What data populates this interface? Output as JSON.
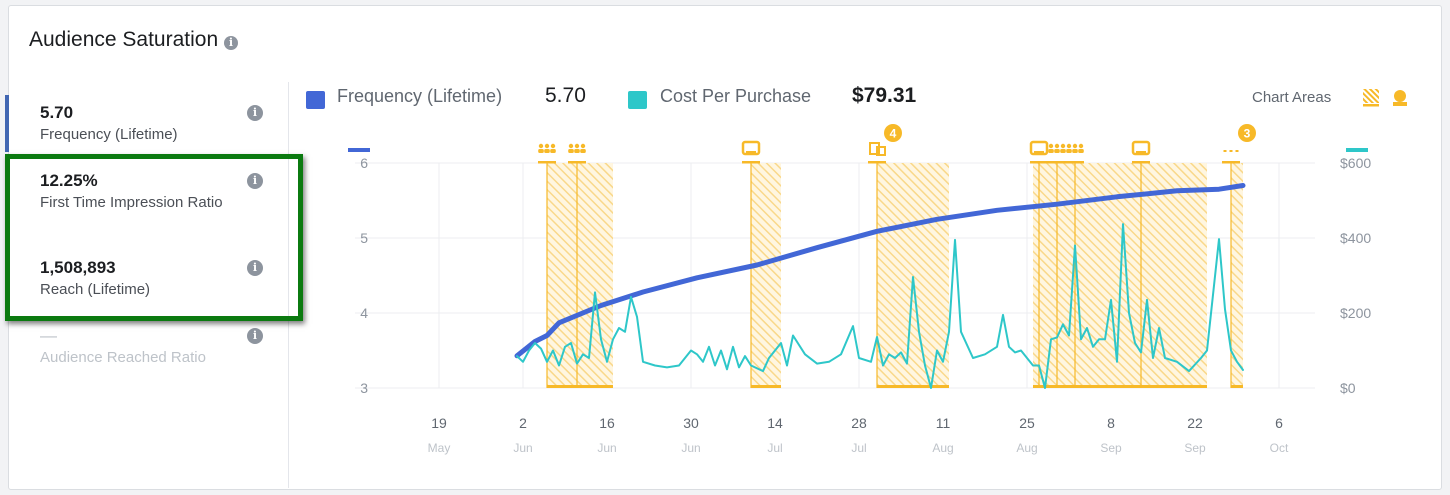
{
  "header": {
    "title": "Audience Saturation"
  },
  "metrics": [
    {
      "value": "5.70",
      "label": "Frequency (Lifetime)",
      "selected": true
    },
    {
      "value": "12.25%",
      "label": "First Time Impression Ratio",
      "highlighted": true
    },
    {
      "value": "1,508,893",
      "label": "Reach (Lifetime)",
      "highlighted": true
    },
    {
      "value": "—",
      "label": "Audience Reached Ratio",
      "disabled": true
    }
  ],
  "legend": {
    "series1": {
      "label": "Frequency (Lifetime)",
      "value": "5.70",
      "color": "#4267d6"
    },
    "series2": {
      "label": "Cost Per Purchase",
      "value": "$79.31",
      "color": "#2ec7c9"
    },
    "chart_areas_label": "Chart Areas"
  },
  "colors": {
    "area": "#f7b928",
    "highlight_box": "#0b7a10"
  },
  "chart_data": {
    "type": "line",
    "xlim": [
      "May 5",
      "Oct 12"
    ],
    "x_ticks": [
      {
        "d": "19",
        "m": "May"
      },
      {
        "d": "2",
        "m": "Jun"
      },
      {
        "d": "16",
        "m": "Jun"
      },
      {
        "d": "30",
        "m": "Jun"
      },
      {
        "d": "14",
        "m": "Jul"
      },
      {
        "d": "28",
        "m": "Jul"
      },
      {
        "d": "11",
        "m": "Aug"
      },
      {
        "d": "25",
        "m": "Aug"
      },
      {
        "d": "8",
        "m": "Sep"
      },
      {
        "d": "22",
        "m": "Sep"
      },
      {
        "d": "6",
        "m": "Oct"
      }
    ],
    "y_left": {
      "lim": [
        3,
        6
      ],
      "ticks": [
        "3",
        "4",
        "5",
        "6"
      ]
    },
    "y_right": {
      "lim": [
        0,
        600
      ],
      "ticks": [
        "$0",
        "$200",
        "$400",
        "$600"
      ]
    },
    "grid": true,
    "series": [
      {
        "name": "Frequency (Lifetime)",
        "axis": "left",
        "points": [
          [
            "Jun 1",
            3.43
          ],
          [
            "Jun 4",
            3.62
          ],
          [
            "Jun 6",
            3.7
          ],
          [
            "Jun 8",
            3.87
          ],
          [
            "Jun 15",
            4.1
          ],
          [
            "Jun 22",
            4.28
          ],
          [
            "Jul 1",
            4.47
          ],
          [
            "Jul 11",
            4.64
          ],
          [
            "Jul 21",
            4.87
          ],
          [
            "Jul 31",
            5.09
          ],
          [
            "Aug 10",
            5.25
          ],
          [
            "Aug 20",
            5.37
          ],
          [
            "Aug 30",
            5.45
          ],
          [
            "Sep 9",
            5.55
          ],
          [
            "Sep 19",
            5.63
          ],
          [
            "Sep 26",
            5.65
          ],
          [
            "Sep 30",
            5.7
          ]
        ]
      },
      {
        "name": "Cost Per Purchase",
        "axis": "right",
        "points": [
          [
            "Jun 1",
            85
          ],
          [
            "Jun 2",
            70
          ],
          [
            "Jun 3",
            100
          ],
          [
            "Jun 4",
            120
          ],
          [
            "Jun 5",
            105
          ],
          [
            "Jun 6",
            70
          ],
          [
            "Jun 7",
            100
          ],
          [
            "Jun 8",
            60
          ],
          [
            "Jun 9",
            110
          ],
          [
            "Jun 10",
            120
          ],
          [
            "Jun 11",
            65
          ],
          [
            "Jun 12",
            90
          ],
          [
            "Jun 13",
            80
          ],
          [
            "Jun 14",
            255
          ],
          [
            "Jun 15",
            130
          ],
          [
            "Jun 16",
            70
          ],
          [
            "Jun 17",
            130
          ],
          [
            "Jun 18",
            160
          ],
          [
            "Jun 19",
            150
          ],
          [
            "Jun 20",
            243
          ],
          [
            "Jun 21",
            190
          ],
          [
            "Jun 22",
            70
          ],
          [
            "Jun 24",
            60
          ],
          [
            "Jun 26",
            55
          ],
          [
            "Jun 28",
            60
          ],
          [
            "Jun 30",
            100
          ],
          [
            "Jul 1",
            90
          ],
          [
            "Jul 2",
            70
          ],
          [
            "Jul 3",
            110
          ],
          [
            "Jul 4",
            60
          ],
          [
            "Jul 5",
            100
          ],
          [
            "Jul 6",
            50
          ],
          [
            "Jul 7",
            110
          ],
          [
            "Jul 8",
            55
          ],
          [
            "Jul 9",
            85
          ],
          [
            "Jul 10",
            60
          ],
          [
            "Jul 12",
            45
          ],
          [
            "Jul 13",
            80
          ],
          [
            "Jul 15",
            120
          ],
          [
            "Jul 16",
            60
          ],
          [
            "Jul 17",
            140
          ],
          [
            "Jul 19",
            90
          ],
          [
            "Jul 21",
            65
          ],
          [
            "Jul 23",
            70
          ],
          [
            "Jul 25",
            90
          ],
          [
            "Jul 27",
            165
          ],
          [
            "Jul 28",
            80
          ],
          [
            "Jul 30",
            70
          ],
          [
            "Jul 31",
            136
          ],
          [
            "Aug 1",
            60
          ],
          [
            "Aug 2",
            90
          ],
          [
            "Aug 3",
            80
          ],
          [
            "Aug 4",
            95
          ],
          [
            "Aug 5",
            65
          ],
          [
            "Aug 6",
            296
          ],
          [
            "Aug 7",
            150
          ],
          [
            "Aug 8",
            60
          ],
          [
            "Aug 9",
            0
          ],
          [
            "Aug 10",
            100
          ],
          [
            "Aug 11",
            70
          ],
          [
            "Aug 12",
            150
          ],
          [
            "Aug 13",
            395
          ],
          [
            "Aug 14",
            150
          ],
          [
            "Aug 16",
            80
          ],
          [
            "Aug 18",
            90
          ],
          [
            "Aug 20",
            110
          ],
          [
            "Aug 21",
            195
          ],
          [
            "Aug 22",
            110
          ],
          [
            "Aug 23",
            95
          ],
          [
            "Aug 24",
            100
          ],
          [
            "Aug 25",
            80
          ],
          [
            "Aug 26",
            60
          ],
          [
            "Aug 27",
            60
          ],
          [
            "Aug 28",
            0
          ],
          [
            "Aug 29",
            130
          ],
          [
            "Aug 30",
            135
          ],
          [
            "Aug 31",
            170
          ],
          [
            "Sep 1",
            140
          ],
          [
            "Sep 2",
            380
          ],
          [
            "Sep 3",
            130
          ],
          [
            "Sep 4",
            160
          ],
          [
            "Sep 5",
            110
          ],
          [
            "Sep 6",
            130
          ],
          [
            "Sep 7",
            130
          ],
          [
            "Sep 8",
            235
          ],
          [
            "Sep 9",
            70
          ],
          [
            "Sep 10",
            437
          ],
          [
            "Sep 11",
            200
          ],
          [
            "Sep 12",
            120
          ],
          [
            "Sep 13",
            95
          ],
          [
            "Sep 14",
            235
          ],
          [
            "Sep 15",
            80
          ],
          [
            "Sep 16",
            160
          ],
          [
            "Sep 17",
            80
          ],
          [
            "Sep 19",
            70
          ],
          [
            "Sep 21",
            45
          ],
          [
            "Sep 23",
            80
          ],
          [
            "Sep 24",
            100
          ],
          [
            "Sep 26",
            397
          ],
          [
            "Sep 27",
            210
          ],
          [
            "Sep 28",
            100
          ],
          [
            "Sep 29",
            70
          ],
          [
            "Sep 30",
            48
          ]
        ]
      }
    ],
    "chart_areas": [
      {
        "start": "Jun 6",
        "end": "Jun 17",
        "markers": [
          {
            "date": "Jun 6",
            "icon": "people-icon"
          },
          {
            "date": "Jun 11",
            "icon": "people-icon"
          }
        ]
      },
      {
        "start": "Jul 10",
        "end": "Jul 15",
        "markers": [
          {
            "date": "Jul 10",
            "icon": "monitor-icon"
          }
        ]
      },
      {
        "start": "Jul 31",
        "end": "Aug 12",
        "markers": [
          {
            "date": "Jul 31",
            "icon": "ads-icon"
          }
        ],
        "badge": "4"
      },
      {
        "start": "Aug 26",
        "end": "Sep 24",
        "markers": [
          {
            "date": "Aug 27",
            "icon": "monitor-icon"
          },
          {
            "date": "Aug 30",
            "icon": "people-icon"
          },
          {
            "date": "Sep 2",
            "icon": "people-icon"
          },
          {
            "date": "Sep 13",
            "icon": "monitor-icon"
          }
        ]
      },
      {
        "start": "Sep 28",
        "end": "Sep 30",
        "markers": [
          {
            "date": "Sep 28",
            "icon": "more-icon"
          }
        ],
        "badge": "3"
      }
    ]
  }
}
